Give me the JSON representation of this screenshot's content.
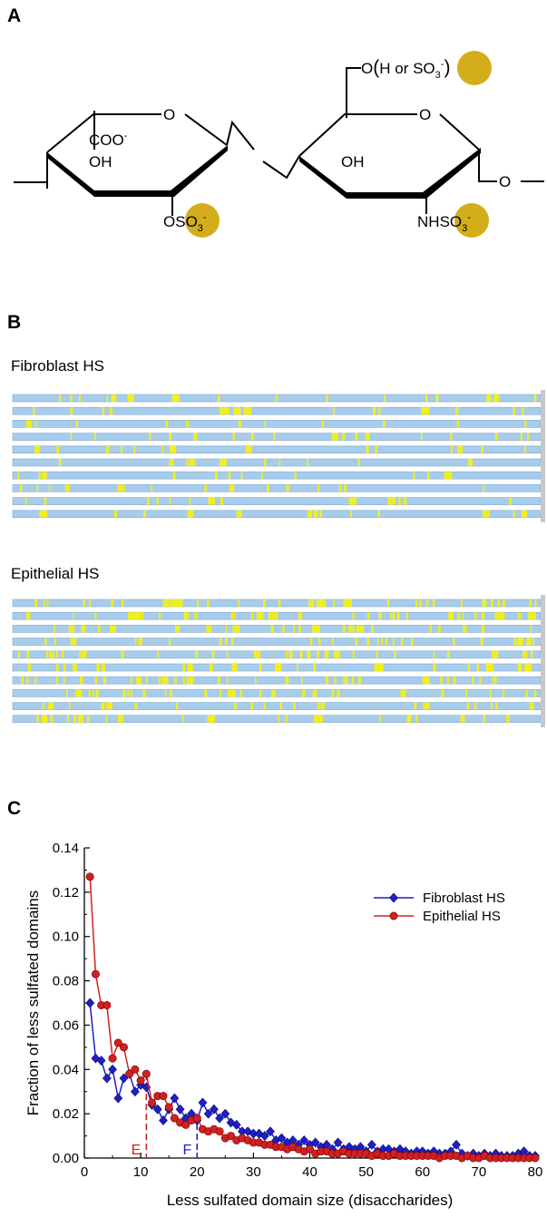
{
  "panels": {
    "a": "A",
    "b": "B",
    "c": "C"
  },
  "structure": {
    "ring1": {
      "carboxyl": "COO",
      "carboxyl_charge": "-",
      "hydroxyl": "OH",
      "ring_oxygen": "O",
      "sulfate_o": "O",
      "sulfate": "SO",
      "sulfate_sub": "3",
      "sulfate_charge": "-"
    },
    "linkage_oxygen": "O",
    "ring2": {
      "ring_oxygen": "O",
      "hydroxyl": "OH",
      "c6_o": "O",
      "c6_paren_open": "(",
      "c6_text": "H or ",
      "c6_sulfate": "SO",
      "c6_sulfate_sub": "3",
      "c6_sulfate_charge": "-",
      "c6_paren_close": ")",
      "amine": "NH",
      "amine_sulfate": "SO",
      "amine_sulfate_sub": "3",
      "amine_sulfate_charge": "-",
      "tail_o": "O"
    },
    "highlight_color": "#D4AE1A"
  },
  "domains": {
    "bar_color": "#A7CCEC",
    "mark_color": "#F2EE1C",
    "fibroblast": {
      "title": "Fibroblast HS"
    },
    "epithelial": {
      "title": "Epithelial HS"
    }
  },
  "chart_data": {
    "type": "line",
    "xlabel": "Less sulfated domain size (disaccharides)",
    "ylabel": "Fraction of less sulfated domains",
    "xlim": [
      0,
      80
    ],
    "ylim": [
      0,
      0.14
    ],
    "xticks": [
      "0",
      "10",
      "20",
      "30",
      "40",
      "50",
      "60",
      "70",
      "80"
    ],
    "yticks": [
      "0.00",
      "0.02",
      "0.04",
      "0.06",
      "0.08",
      "0.10",
      "0.12",
      "0.14"
    ],
    "legend_position": "top-right",
    "series": [
      {
        "name": "Fibroblast HS",
        "color": "#1F1FC8",
        "marker": "diamond",
        "x": [
          1,
          2,
          3,
          4,
          5,
          6,
          7,
          8,
          9,
          10,
          11,
          12,
          13,
          14,
          15,
          16,
          17,
          18,
          19,
          20,
          21,
          22,
          23,
          24,
          25,
          26,
          27,
          28,
          29,
          30,
          31,
          32,
          33,
          34,
          35,
          36,
          37,
          38,
          39,
          40,
          41,
          42,
          43,
          44,
          45,
          46,
          47,
          48,
          49,
          50,
          51,
          52,
          53,
          54,
          55,
          56,
          57,
          58,
          59,
          60,
          61,
          62,
          63,
          64,
          65,
          66,
          67,
          68,
          69,
          70,
          71,
          72,
          73,
          74,
          75,
          76,
          77,
          78,
          79,
          80
        ],
        "y": [
          0.07,
          0.045,
          0.044,
          0.036,
          0.04,
          0.027,
          0.036,
          0.038,
          0.03,
          0.033,
          0.032,
          0.024,
          0.022,
          0.017,
          0.022,
          0.027,
          0.022,
          0.018,
          0.02,
          0.017,
          0.025,
          0.02,
          0.022,
          0.018,
          0.02,
          0.016,
          0.015,
          0.012,
          0.012,
          0.011,
          0.011,
          0.01,
          0.012,
          0.008,
          0.009,
          0.007,
          0.008,
          0.006,
          0.008,
          0.006,
          0.007,
          0.005,
          0.006,
          0.004,
          0.007,
          0.004,
          0.005,
          0.004,
          0.005,
          0.003,
          0.006,
          0.003,
          0.004,
          0.004,
          0.003,
          0.004,
          0.003,
          0.002,
          0.003,
          0.003,
          0.002,
          0.003,
          0.002,
          0.002,
          0.003,
          0.006,
          0.002,
          0.001,
          0.002,
          0.001,
          0.002,
          0.001,
          0.002,
          0.001,
          0.001,
          0.001,
          0.002,
          0.003,
          0.001,
          0.001
        ]
      },
      {
        "name": "Epithelial HS",
        "color": "#D02020",
        "marker": "circle",
        "x": [
          1,
          2,
          3,
          4,
          5,
          6,
          7,
          8,
          9,
          10,
          11,
          12,
          13,
          14,
          15,
          16,
          17,
          18,
          19,
          20,
          21,
          22,
          23,
          24,
          25,
          26,
          27,
          28,
          29,
          30,
          31,
          32,
          33,
          34,
          35,
          36,
          37,
          38,
          39,
          40,
          41,
          42,
          43,
          44,
          45,
          46,
          47,
          48,
          49,
          50,
          51,
          52,
          53,
          54,
          55,
          56,
          57,
          58,
          59,
          60,
          61,
          62,
          63,
          64,
          65,
          66,
          67,
          68,
          69,
          70,
          71,
          72,
          73,
          74,
          75,
          76,
          77,
          78,
          79,
          80
        ],
        "y": [
          0.127,
          0.083,
          0.069,
          0.069,
          0.045,
          0.052,
          0.05,
          0.038,
          0.04,
          0.035,
          0.038,
          0.025,
          0.028,
          0.028,
          0.023,
          0.018,
          0.016,
          0.015,
          0.017,
          0.018,
          0.013,
          0.012,
          0.013,
          0.012,
          0.009,
          0.01,
          0.008,
          0.009,
          0.008,
          0.007,
          0.007,
          0.006,
          0.006,
          0.005,
          0.005,
          0.004,
          0.005,
          0.004,
          0.003,
          0.004,
          0.002,
          0.003,
          0.003,
          0.002,
          0.002,
          0.003,
          0.002,
          0.002,
          0.002,
          0.002,
          0.001,
          0.002,
          0.001,
          0.001,
          0.002,
          0.001,
          0.001,
          0.001,
          0.001,
          0.001,
          0.001,
          0.001,
          0.0,
          0.001,
          0.001,
          0.001,
          0.0,
          0.001,
          0.0,
          0.0,
          0.001,
          0.0,
          0.0,
          0.0,
          0.0,
          0.0,
          0.0,
          0.0,
          0.0,
          0.0
        ]
      }
    ],
    "annotations": [
      {
        "label": "E",
        "x": 11,
        "y": 0.038,
        "color": "#D02020"
      },
      {
        "label": "F",
        "x": 20,
        "y": 0.02,
        "color": "#1F1FC8"
      }
    ]
  }
}
